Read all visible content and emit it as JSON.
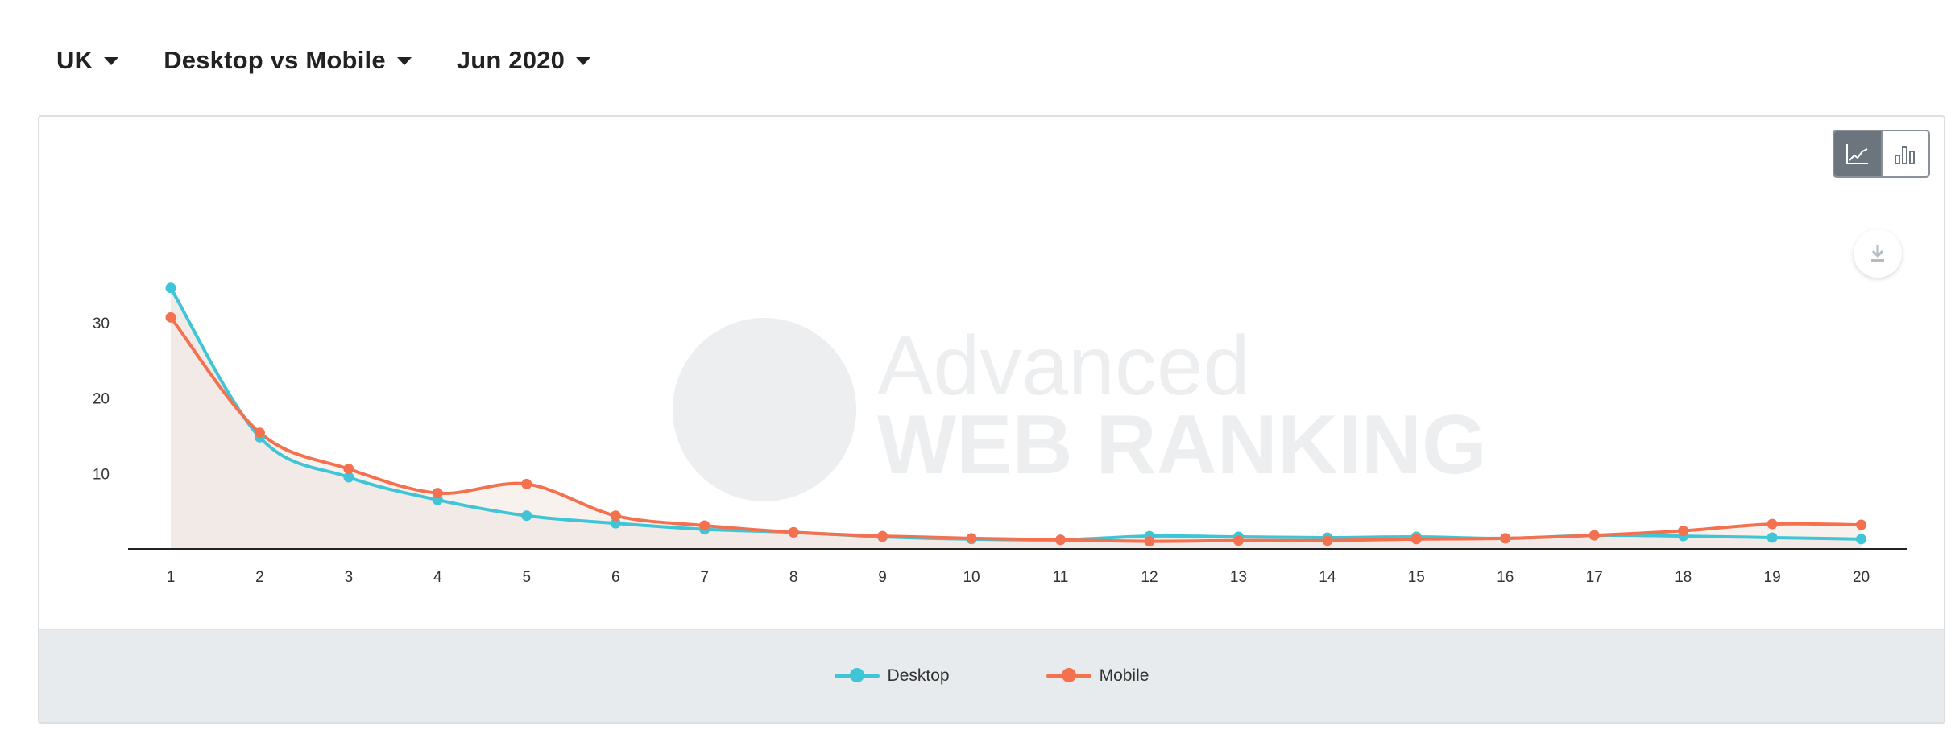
{
  "filters": {
    "country": "UK",
    "comparison": "Desktop vs Mobile",
    "period": "Jun 2020"
  },
  "watermark": {
    "line1": "Advanced",
    "line2": "WEB RANKING"
  },
  "colors": {
    "desktop": "#40c5d6",
    "mobile": "#f47150",
    "area": "#ece9e4",
    "axis": "#222222"
  },
  "icons": {
    "toggle_line": "line-chart-icon",
    "toggle_bar": "bar-chart-icon",
    "download": "download-icon"
  },
  "chart_data": {
    "type": "line",
    "x": [
      1,
      2,
      3,
      4,
      5,
      6,
      7,
      8,
      9,
      10,
      11,
      12,
      13,
      14,
      15,
      16,
      17,
      18,
      19,
      20
    ],
    "yticks": [
      10,
      20,
      30
    ],
    "ylim": [
      0,
      35
    ],
    "grid": false,
    "legend_position": "bottom",
    "series": [
      {
        "name": "Desktop",
        "color": "#40c5d6",
        "values": [
          34.6,
          14.8,
          9.5,
          6.5,
          4.4,
          3.4,
          2.6,
          2.2,
          1.6,
          1.3,
          1.2,
          1.7,
          1.6,
          1.5,
          1.6,
          1.4,
          1.8,
          1.7,
          1.5,
          1.3
        ]
      },
      {
        "name": "Mobile",
        "color": "#f47150",
        "values": [
          30.7,
          15.4,
          10.6,
          7.4,
          8.6,
          4.4,
          3.1,
          2.2,
          1.7,
          1.4,
          1.2,
          1.0,
          1.1,
          1.1,
          1.3,
          1.4,
          1.8,
          2.4,
          3.3,
          3.2
        ]
      }
    ]
  }
}
